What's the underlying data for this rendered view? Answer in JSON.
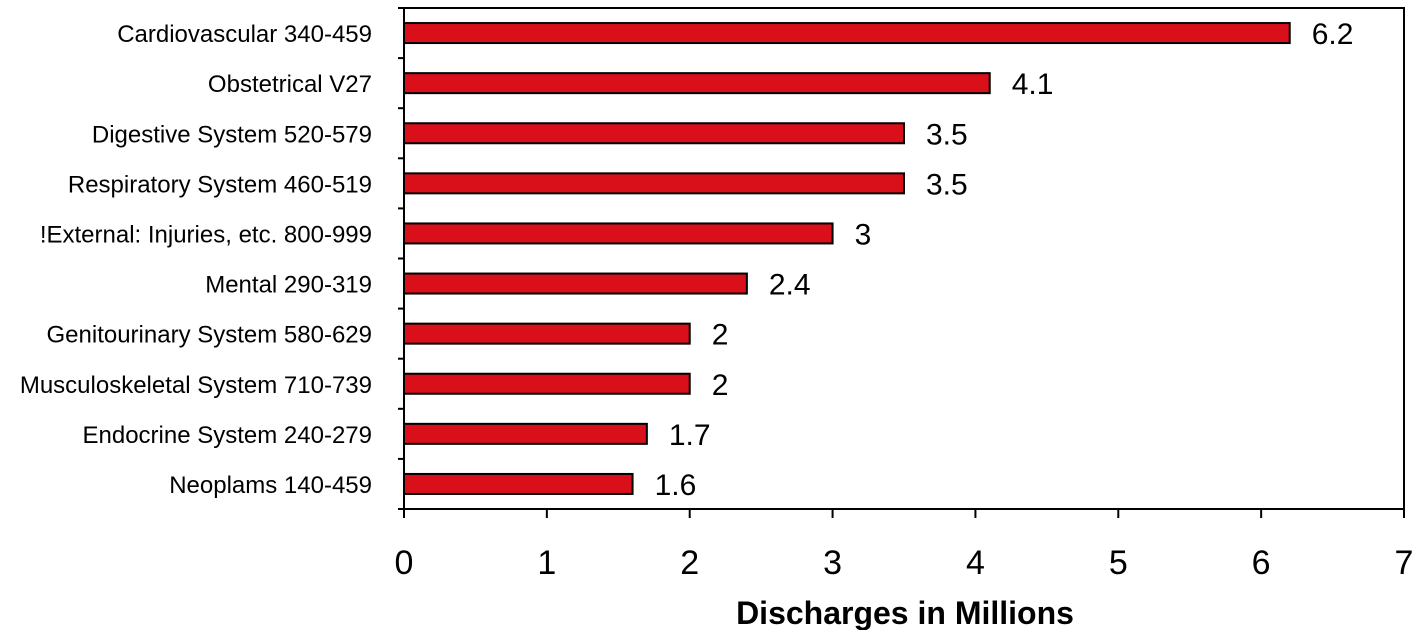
{
  "chart_data": {
    "type": "bar",
    "orientation": "horizontal",
    "categories": [
      "Cardiovascular 340-459",
      "Obstetrical V27",
      "Digestive System 520-579",
      "Respiratory System 460-519",
      "!External:  Injuries, etc. 800-999",
      "Mental 290-319",
      "Genitourinary System 580-629",
      "Musculoskeletal System 710-739",
      "Endocrine System 240-279",
      "Neoplams 140-459"
    ],
    "values": [
      6.2,
      4.1,
      3.5,
      3.5,
      3,
      2.4,
      2,
      2,
      1.7,
      1.6
    ],
    "data_labels": [
      "6.2",
      "4.1",
      "3.5",
      "3.5",
      "3",
      "2.4",
      "2",
      "2",
      "1.7",
      "1.6"
    ],
    "x_ticks": [
      "0",
      "1",
      "2",
      "3",
      "4",
      "5",
      "6",
      "7"
    ],
    "xlabel": "Discharges in Millions",
    "ylabel": "",
    "title": "",
    "xlim": [
      0,
      7
    ],
    "grid": false,
    "bar_color": "#d9101a",
    "bar_edge_color": "#000000"
  }
}
